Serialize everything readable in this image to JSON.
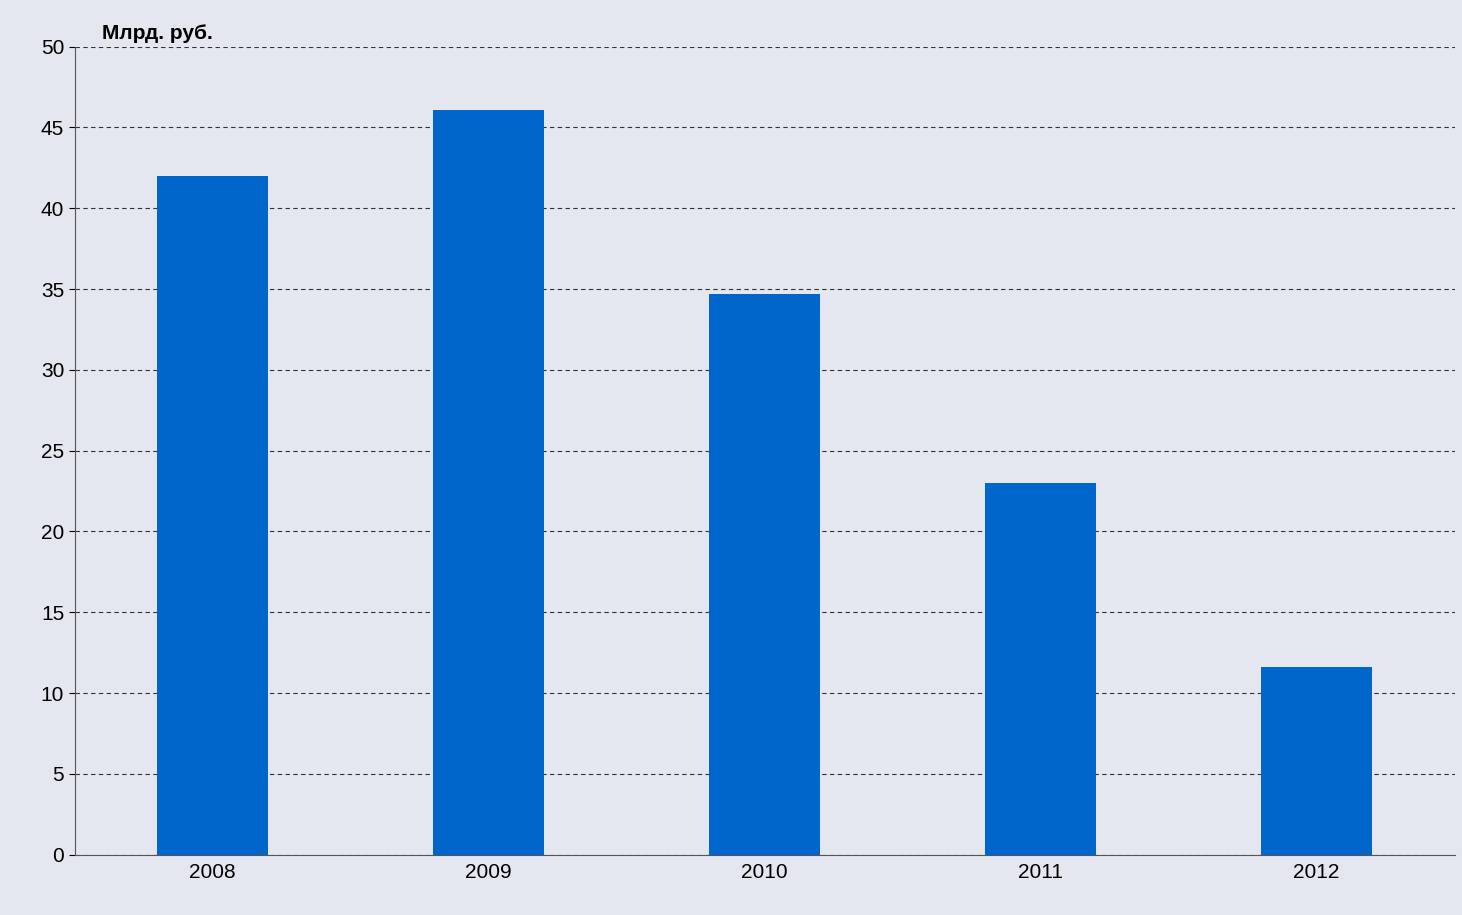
{
  "chart_data": {
    "type": "bar",
    "y_label": "Млрд. руб.",
    "categories": [
      "2008",
      "2009",
      "2010",
      "2011",
      "2012"
    ],
    "values": [
      42,
      46.1,
      34.7,
      23,
      11.6
    ],
    "color": "#0066cc",
    "ylim": [
      0,
      50
    ],
    "yticks": [
      0,
      5,
      10,
      15,
      20,
      25,
      30,
      35,
      40,
      45,
      50
    ],
    "grid": true
  }
}
